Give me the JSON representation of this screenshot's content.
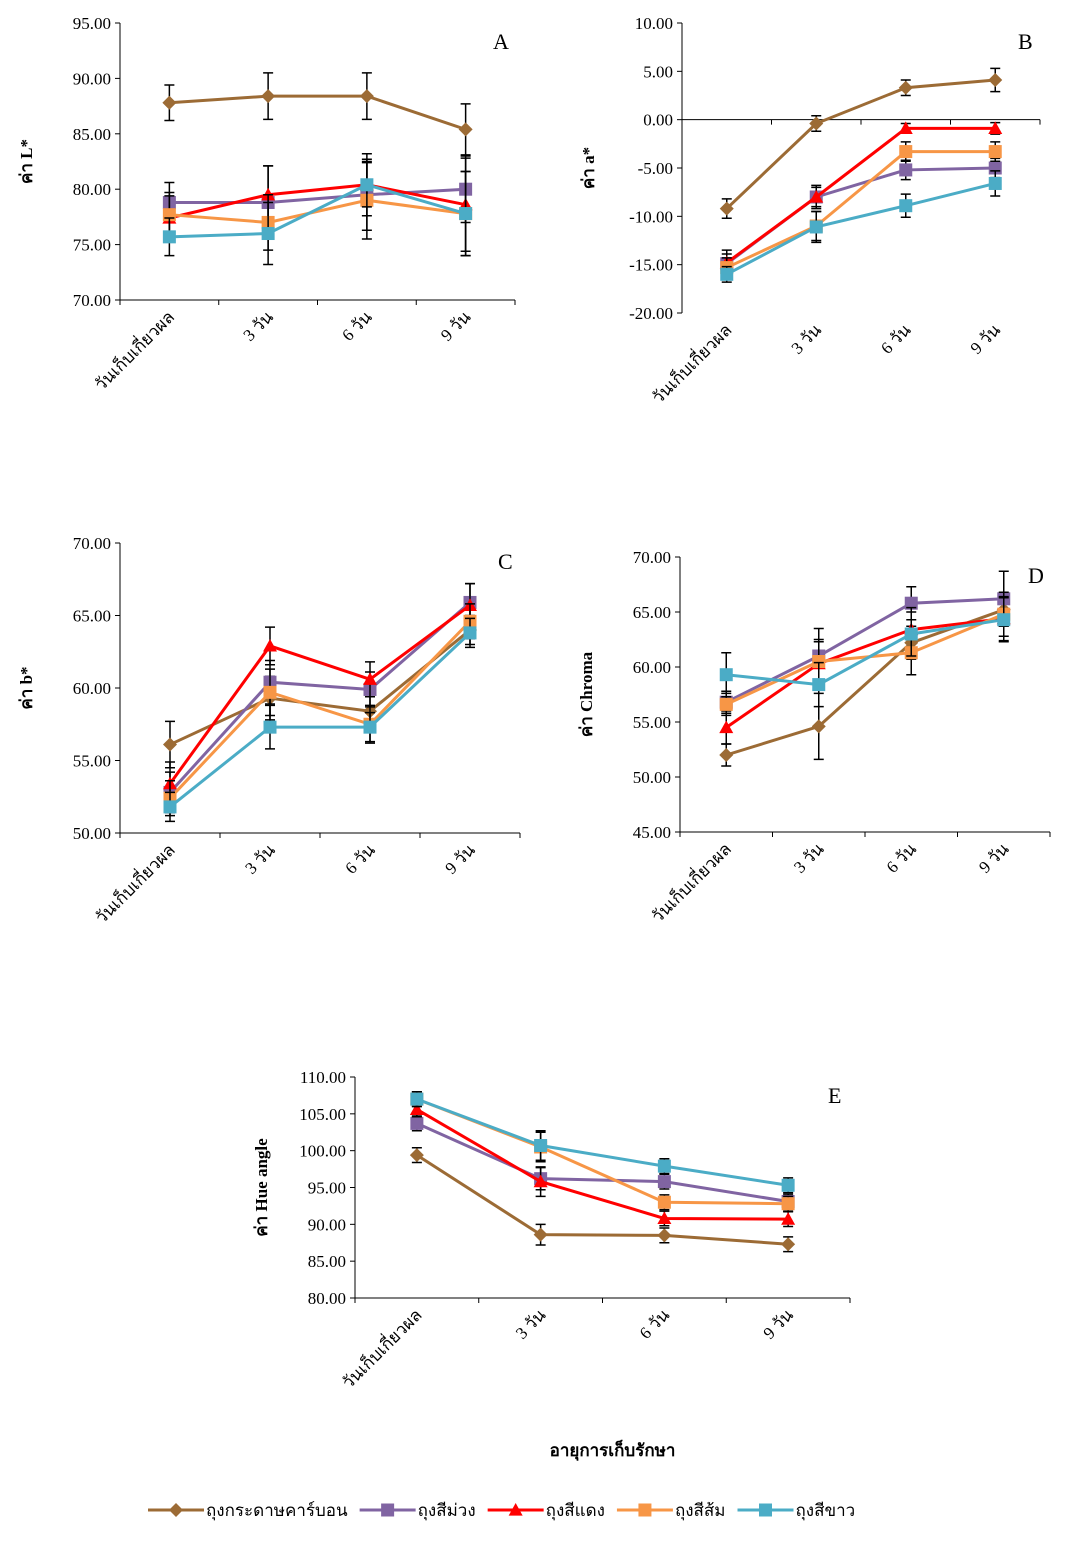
{
  "chart_data": [
    {
      "type": "line",
      "panel_label": "A",
      "ylabel": "ค่า L*",
      "categories": [
        "วันเก็บเกี่ยวผล",
        "3 วัน",
        "6 วัน",
        "9 วัน"
      ],
      "ylim": [
        70,
        95
      ],
      "yticks": [
        {
          "value": 70,
          "label": "70.00"
        },
        {
          "value": 75,
          "label": "75.00"
        },
        {
          "value": 80,
          "label": "80.00"
        },
        {
          "value": 85,
          "label": "85.00"
        },
        {
          "value": 90,
          "label": "90.00"
        },
        {
          "value": 95,
          "label": "95.00"
        }
      ],
      "series": [
        {
          "name": "ถุงกระดาษคาร์บอน",
          "color": "#9c6b35",
          "values": [
            87.8,
            88.4,
            88.4,
            85.4
          ],
          "errors": [
            1.6,
            2.1,
            2.1,
            2.3
          ]
        },
        {
          "name": "ถุงสีม่วง",
          "color": "#8064a2",
          "values": [
            78.8,
            78.8,
            79.5,
            80.0
          ],
          "errors": [
            1.8,
            3.3,
            3.2,
            3.0
          ]
        },
        {
          "name": "ถุงสีแดง",
          "color": "#ff0000",
          "values": [
            77.4,
            79.5,
            80.4,
            78.6
          ],
          "errors": [
            2.0,
            2.6,
            2.8,
            4.2
          ]
        },
        {
          "name": "ถุงสีส้ม",
          "color": "#f79646",
          "values": [
            77.7,
            77.0,
            79.0,
            77.8
          ],
          "errors": [
            2.0,
            2.5,
            3.5,
            3.8
          ]
        },
        {
          "name": "ถุงสีขาว",
          "color": "#4bacc6",
          "values": [
            75.7,
            76.0,
            80.4,
            77.8
          ],
          "errors": [
            1.7,
            2.8,
            2.0,
            3.8
          ]
        }
      ]
    },
    {
      "type": "line",
      "panel_label": "B",
      "ylabel": "ค่า a*",
      "categories": [
        "วันเก็บเกี่ยวผล",
        "3 วัน",
        "6 วัน",
        "9 วัน"
      ],
      "ylim": [
        -20,
        10
      ],
      "baseline": 0,
      "yticks": [
        {
          "value": -20,
          "label": "-20.00"
        },
        {
          "value": -15,
          "label": "-15.00"
        },
        {
          "value": -10,
          "label": "-10.00"
        },
        {
          "value": -5,
          "label": "-5.00"
        },
        {
          "value": 0,
          "label": "0.00"
        },
        {
          "value": 5,
          "label": "5.00"
        },
        {
          "value": 10,
          "label": "10.00"
        }
      ],
      "series": [
        {
          "name": "ถุงกระดาษคาร์บอน",
          "color": "#9c6b35",
          "values": [
            -9.2,
            -0.4,
            3.3,
            4.1
          ],
          "errors": [
            1.0,
            0.8,
            0.8,
            1.2
          ]
        },
        {
          "name": "ถุงสีม่วง",
          "color": "#8064a2",
          "values": [
            -14.9,
            -8.0,
            -5.2,
            -5.0
          ],
          "errors": [
            1.0,
            1.0,
            1.0,
            1.0
          ]
        },
        {
          "name": "ถุงสีแดง",
          "color": "#ff0000",
          "values": [
            -14.8,
            -8.0,
            -0.9,
            -0.9
          ],
          "errors": [
            1.3,
            1.2,
            0.5,
            0.6
          ]
        },
        {
          "name": "ถุงสีส้ม",
          "color": "#f79646",
          "values": [
            -15.3,
            -11.0,
            -3.3,
            -3.3
          ],
          "errors": [
            1.0,
            1.5,
            1.0,
            1.0
          ]
        },
        {
          "name": "ถุงสีขาว",
          "color": "#4bacc6",
          "values": [
            -16.0,
            -11.1,
            -8.9,
            -6.6
          ],
          "errors": [
            0.8,
            1.6,
            1.2,
            1.3
          ]
        }
      ]
    },
    {
      "type": "line",
      "panel_label": "C",
      "ylabel": "ค่า b*",
      "categories": [
        "วันเก็บเกี่ยวผล",
        "3 วัน",
        "6 วัน",
        "9 วัน"
      ],
      "ylim": [
        50,
        70
      ],
      "yticks": [
        {
          "value": 50,
          "label": "50.00"
        },
        {
          "value": 55,
          "label": "55.00"
        },
        {
          "value": 60,
          "label": "60.00"
        },
        {
          "value": 65,
          "label": "65.00"
        },
        {
          "value": 70,
          "label": "70.00"
        }
      ],
      "series": [
        {
          "name": "ถุงกระดาษคาร์บอน",
          "color": "#9c6b35",
          "values": [
            56.1,
            59.3,
            58.4,
            64.0
          ],
          "errors": [
            1.6,
            1.5,
            1.4,
            1.0
          ]
        },
        {
          "name": "ถุงสีม่วง",
          "color": "#8064a2",
          "values": [
            52.8,
            60.4,
            59.9,
            65.9
          ],
          "errors": [
            1.4,
            1.5,
            1.2,
            1.3
          ]
        },
        {
          "name": "ถุงสีแดง",
          "color": "#ff0000",
          "values": [
            53.4,
            62.9,
            60.6,
            65.7
          ],
          "errors": [
            1.5,
            1.3,
            1.2,
            1.5
          ]
        },
        {
          "name": "ถุงสีส้ม",
          "color": "#f79646",
          "values": [
            52.4,
            59.7,
            57.5,
            64.6
          ],
          "errors": [
            1.2,
            1.6,
            1.3,
            1.2
          ]
        },
        {
          "name": "ถุงสีขาว",
          "color": "#4bacc6",
          "values": [
            51.8,
            57.3,
            57.3,
            63.8
          ],
          "errors": [
            1.0,
            1.5,
            1.0,
            1.0
          ]
        }
      ]
    },
    {
      "type": "line",
      "panel_label": "D",
      "ylabel": "ค่า Chroma",
      "categories": [
        "วันเก็บเกี่ยวผล",
        "3 วัน",
        "6 วัน",
        "9 วัน"
      ],
      "ylim": [
        45,
        70
      ],
      "yticks": [
        {
          "value": 45,
          "label": "45.00"
        },
        {
          "value": 50,
          "label": "50.00"
        },
        {
          "value": 55,
          "label": "55.00"
        },
        {
          "value": 60,
          "label": "60.00"
        },
        {
          "value": 65,
          "label": "65.00"
        },
        {
          "value": 70,
          "label": "70.00"
        }
      ],
      "series": [
        {
          "name": "ถุงกระดาษคาร์บอน",
          "color": "#9c6b35",
          "values": [
            52.0,
            54.6,
            62.2,
            65.2
          ],
          "errors": [
            1.0,
            3.0,
            1.5,
            1.5
          ]
        },
        {
          "name": "ถุงสีม่วง",
          "color": "#8064a2",
          "values": [
            56.8,
            61.0,
            65.8,
            66.2
          ],
          "errors": [
            1.0,
            2.5,
            1.5,
            2.5
          ]
        },
        {
          "name": "ถุงสีแดง",
          "color": "#ff0000",
          "values": [
            54.5,
            60.3,
            63.4,
            64.4
          ],
          "errors": [
            1.5,
            2.0,
            2.0,
            2.0
          ]
        },
        {
          "name": "ถุงสีส้ม",
          "color": "#f79646",
          "values": [
            56.6,
            60.5,
            61.3,
            64.8
          ],
          "errors": [
            1.0,
            2.0,
            2.0,
            2.0
          ]
        },
        {
          "name": "ถุงสีขาว",
          "color": "#4bacc6",
          "values": [
            59.3,
            58.4,
            63.0,
            64.3
          ],
          "errors": [
            2.0,
            2.0,
            2.0,
            2.0
          ]
        }
      ]
    },
    {
      "type": "line",
      "panel_label": "E",
      "ylabel": "ค่า Hue angle",
      "xlabel": "อายุการเก็บรักษา",
      "categories": [
        "วันเก็บเกี่ยวผล",
        "3 วัน",
        "6 วัน",
        "9 วัน"
      ],
      "ylim": [
        80,
        110
      ],
      "yticks": [
        {
          "value": 80,
          "label": "80.00"
        },
        {
          "value": 85,
          "label": "85.00"
        },
        {
          "value": 90,
          "label": "90.00"
        },
        {
          "value": 95,
          "label": "95.00"
        },
        {
          "value": 100,
          "label": "100.00"
        },
        {
          "value": 105,
          "label": "105.00"
        },
        {
          "value": 110,
          "label": "110.00"
        }
      ],
      "series": [
        {
          "name": "ถุงกระดาษคาร์บอน",
          "color": "#9c6b35",
          "values": [
            99.4,
            88.6,
            88.5,
            87.3
          ],
          "errors": [
            1.0,
            1.4,
            1.0,
            1.0
          ]
        },
        {
          "name": "ถุงสีม่วง",
          "color": "#8064a2",
          "values": [
            103.7,
            96.2,
            95.8,
            93.1
          ],
          "errors": [
            1.0,
            1.5,
            1.0,
            1.0
          ]
        },
        {
          "name": "ถุงสีแดง",
          "color": "#ff0000",
          "values": [
            105.6,
            95.8,
            90.8,
            90.7
          ],
          "errors": [
            1.0,
            2.0,
            1.0,
            1.0
          ]
        },
        {
          "name": "ถุงสีส้ม",
          "color": "#f79646",
          "values": [
            107.0,
            100.5,
            93.0,
            92.8
          ],
          "errors": [
            1.0,
            2.0,
            1.0,
            1.0
          ]
        },
        {
          "name": "ถุงสีขาว",
          "color": "#4bacc6",
          "values": [
            107.0,
            100.7,
            97.9,
            95.3
          ],
          "errors": [
            1.0,
            2.0,
            1.0,
            1.0
          ]
        }
      ]
    }
  ]
}
